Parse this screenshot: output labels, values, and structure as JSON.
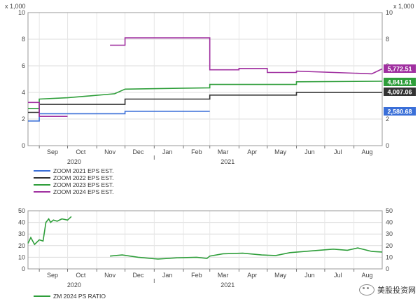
{
  "chart_data": [
    {
      "type": "line",
      "multiplier_label": "x 1,000",
      "ylim": [
        0,
        10
      ],
      "yticks": [
        "0",
        "2",
        "4",
        "6",
        "8",
        "10"
      ],
      "month_ticks": [
        "Sep",
        "Oct",
        "Nov",
        "Dec",
        "Jan",
        "Feb",
        "Mar",
        "Apr",
        "May",
        "Jun",
        "Jul",
        "Aug"
      ],
      "year_labels": [
        "2020",
        "2021"
      ],
      "grid": true,
      "legend_placement": "below",
      "series": [
        {
          "name": "ZOOM 2021 EPS EST.",
          "color": "#3a6fd8",
          "end_label": "2,580.68",
          "x": [
            "2020-08-20",
            "2020-09-01",
            "2020-09-01",
            "2020-12-01",
            "2020-12-01",
            "2021-03-01"
          ],
          "values": [
            1.85,
            1.85,
            2.4,
            2.4,
            2.58,
            2.58
          ]
        },
        {
          "name": "ZOOM 2022 EPS EST.",
          "color": "#333333",
          "end_label": "4,007.06",
          "x": [
            "2020-08-20",
            "2020-09-01",
            "2020-09-01",
            "2020-12-01",
            "2020-12-01",
            "2021-03-01",
            "2021-03-01",
            "2021-06-01",
            "2021-06-01",
            "2021-08-31"
          ],
          "values": [
            2.5,
            2.5,
            3.1,
            3.1,
            3.5,
            3.5,
            3.8,
            3.8,
            4.007,
            4.007
          ]
        },
        {
          "name": "ZOOM 2023 EPS EST.",
          "color": "#2e9e3a",
          "end_label": "4,841.61",
          "x": [
            "2020-08-20",
            "2020-09-01",
            "2020-09-01",
            "2020-10-01",
            "2020-11-20",
            "2020-12-01",
            "2021-01-15",
            "2021-03-01",
            "2021-03-01",
            "2021-06-01",
            "2021-06-01",
            "2021-08-31"
          ],
          "values": [
            2.8,
            2.8,
            3.5,
            3.6,
            3.9,
            4.25,
            4.3,
            4.35,
            4.6,
            4.6,
            4.8,
            4.842
          ]
        },
        {
          "name": "ZOOM 2024 EPS EST.",
          "color": "#a030a0",
          "end_label": "5,772.51",
          "x": [
            "2020-08-20",
            "2020-09-01",
            "2020-09-01",
            "2020-10-01",
            null,
            "2020-11-15",
            "2020-12-01",
            "2020-12-01",
            "2021-03-01",
            "2021-03-01",
            "2021-04-01",
            "2021-04-01",
            "2021-05-01",
            "2021-05-01",
            "2021-06-01",
            "2021-06-01",
            "2021-08-20",
            "2021-08-31"
          ],
          "values": [
            3.25,
            3.25,
            2.2,
            2.2,
            null,
            7.55,
            7.55,
            8.1,
            8.1,
            5.7,
            5.7,
            5.8,
            5.8,
            5.5,
            5.5,
            5.6,
            5.4,
            5.77
          ]
        }
      ]
    },
    {
      "type": "line",
      "ylim": [
        0,
        50
      ],
      "yticks": [
        "0",
        "10",
        "20",
        "30",
        "40",
        "50"
      ],
      "month_ticks": [
        "Sep",
        "Oct",
        "Nov",
        "Dec",
        "Jan",
        "Feb",
        "Mar",
        "Apr",
        "May",
        "Jun",
        "Jul",
        "Aug"
      ],
      "year_labels": [
        "2020",
        "2021"
      ],
      "grid": true,
      "legend_placement": "below",
      "series": [
        {
          "name": "ZM 2024 PS RATIO",
          "color": "#2e9e3a",
          "x": [
            "2020-08-20",
            "2020-08-23",
            "2020-08-27",
            "2020-09-01",
            "2020-09-05",
            "2020-09-08",
            "2020-09-11",
            "2020-09-13",
            "2020-09-16",
            "2020-09-20",
            "2020-09-25",
            "2020-10-01",
            "2020-10-05",
            null,
            "2020-11-15",
            "2020-11-28",
            "2020-12-15",
            "2021-01-05",
            "2021-01-25",
            "2021-02-15",
            "2021-02-26",
            "2021-03-01",
            "2021-03-15",
            "2021-04-05",
            "2021-04-25",
            "2021-05-10",
            "2021-05-25",
            "2021-06-10",
            "2021-06-25",
            "2021-07-10",
            "2021-07-25",
            "2021-08-05",
            "2021-08-20",
            "2021-08-31"
          ],
          "values": [
            22,
            27,
            21,
            25,
            24,
            40,
            43,
            40,
            42,
            41,
            43,
            42,
            45,
            null,
            11,
            12,
            10,
            8.5,
            9.5,
            10,
            9,
            11,
            13,
            13.5,
            12,
            11.5,
            14,
            15,
            16,
            17,
            16,
            18,
            15,
            14.5
          ]
        }
      ]
    }
  ],
  "watermark": "美股投资网"
}
